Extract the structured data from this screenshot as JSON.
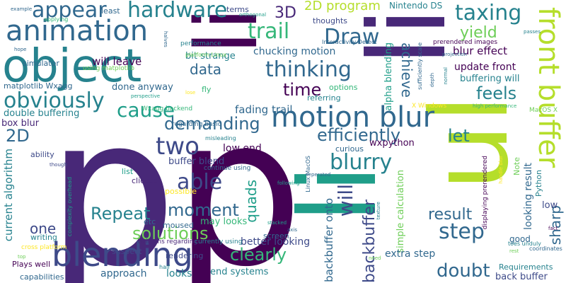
{
  "palette": {
    "background": "#ffffff",
    "dark_purple": "#440154",
    "indigo": "#482878",
    "blue": "#3e4a89",
    "steel": "#31688e",
    "teal": "#26828e",
    "green_teal": "#1f9e89",
    "green": "#35b779",
    "light_green": "#6ece58",
    "lime": "#b5de2b",
    "yellow": "#fde725"
  },
  "words": [
    {
      "text": "p",
      "color": "#482878"
    },
    {
      "text": "p",
      "color": "#440154"
    },
    {
      "text": "li",
      "color": "#440154"
    },
    {
      "text": "li",
      "color": "#482878"
    },
    {
      "text": "li",
      "color": "#1f9e89"
    },
    {
      "text": "ul",
      "color": "#b5de2b"
    },
    {
      "text": "object",
      "color": "#26828e"
    },
    {
      "text": "blending",
      "color": "#3e4a89"
    },
    {
      "text": "motion blur",
      "color": "#31688e"
    },
    {
      "text": "front buffer",
      "color": "#b5de2b"
    },
    {
      "text": "animation",
      "color": "#31688e"
    },
    {
      "text": "hardware",
      "color": "#26828e"
    },
    {
      "text": "appear",
      "color": "#31688e"
    },
    {
      "text": "taxing",
      "color": "#26828e"
    },
    {
      "text": "Draw",
      "color": "#31688e"
    },
    {
      "text": "trail",
      "color": "#35b779"
    },
    {
      "text": "thinking",
      "color": "#31688e"
    },
    {
      "text": "obviously",
      "color": "#26828e"
    },
    {
      "text": "cause",
      "color": "#1f9e89"
    },
    {
      "text": "able",
      "color": "#3e4a89"
    },
    {
      "text": "two",
      "color": "#3e4a89"
    },
    {
      "text": "demanding",
      "color": "#31688e"
    },
    {
      "text": "efficiently",
      "color": "#31688e"
    },
    {
      "text": "blurry",
      "color": "#26828e"
    },
    {
      "text": "Repeat",
      "color": "#26828e"
    },
    {
      "text": "moment",
      "color": "#31688e"
    },
    {
      "text": "solutions",
      "color": "#6ece58"
    },
    {
      "text": "clearly",
      "color": "#35b779"
    },
    {
      "text": "step",
      "color": "#31688e"
    },
    {
      "text": "result",
      "color": "#31688e"
    },
    {
      "text": "doubt",
      "color": "#31688e"
    },
    {
      "text": "feels",
      "color": "#26828e"
    },
    {
      "text": "time",
      "color": "#440154"
    },
    {
      "text": "data",
      "color": "#31688e"
    },
    {
      "text": "yield",
      "color": "#6ece58"
    },
    {
      "text": "achieve",
      "color": "#31688e"
    },
    {
      "text": "let",
      "color": "#26828e"
    },
    {
      "text": "will",
      "color": "#3e4a89"
    },
    {
      "text": "quads",
      "color": "#1f9e89"
    },
    {
      "text": "sharp",
      "color": "#31688e"
    },
    {
      "text": "backbuffer",
      "color": "#3e4a89"
    },
    {
      "text": "one",
      "color": "#3e4a89"
    },
    {
      "text": "2D",
      "color": "#31688e"
    },
    {
      "text": "3D",
      "color": "#482878"
    },
    {
      "text": "2D program",
      "color": "#b5de2b"
    },
    {
      "text": "Nintendo DS",
      "color": "#26828e"
    },
    {
      "text": "will leave",
      "color": "#440154"
    },
    {
      "text": "bit strange",
      "color": "#26828e"
    },
    {
      "text": "chucking motion",
      "color": "#31688e"
    },
    {
      "text": "update front",
      "color": "#440154"
    },
    {
      "text": "buffering will",
      "color": "#26828e"
    },
    {
      "text": "blur effect",
      "color": "#440154"
    },
    {
      "text": "done anyway",
      "color": "#31688e"
    },
    {
      "text": "double buffering",
      "color": "#26828e"
    },
    {
      "text": "box blur",
      "color": "#482878"
    },
    {
      "text": "fading trail",
      "color": "#31688e"
    },
    {
      "text": "low end",
      "color": "#440154"
    },
    {
      "text": "buffer blend",
      "color": "#3e4a89"
    },
    {
      "text": "current algorithm",
      "color": "#26828e"
    },
    {
      "text": "wxpython",
      "color": "#440154"
    },
    {
      "text": "looking result",
      "color": "#31688e"
    },
    {
      "text": "backbuffer onto",
      "color": "#31688e"
    },
    {
      "text": "simple calculation",
      "color": "#6ece58"
    },
    {
      "text": "alpha blending",
      "color": "#1f9e89"
    },
    {
      "text": "may looks",
      "color": "#35b779"
    },
    {
      "text": "better looking",
      "color": "#3e4a89"
    },
    {
      "text": "extra step",
      "color": "#31688e"
    },
    {
      "text": "approach",
      "color": "#31688e"
    },
    {
      "text": "looks",
      "color": "#26828e"
    },
    {
      "text": "end systems",
      "color": "#26828e"
    },
    {
      "text": "back buffer",
      "color": "#3e4a89"
    },
    {
      "text": "Requirements",
      "color": "#26828e"
    },
    {
      "text": "capabilities",
      "color": "#31688e"
    },
    {
      "text": "low",
      "color": "#3e4a89"
    },
    {
      "text": "good",
      "color": "#31688e"
    },
    {
      "text": "rendering",
      "color": "#3e4a89"
    },
    {
      "text": "screen",
      "color": "#31688e"
    },
    {
      "text": "suspect",
      "color": "#3e4a89"
    },
    {
      "text": "writing",
      "color": "#26828e"
    },
    {
      "text": "Plays well",
      "color": "#440154"
    },
    {
      "text": "cross platform",
      "color": "#fde725"
    },
    {
      "text": "opinions regarding",
      "color": "#482878"
    },
    {
      "text": "currently using",
      "color": "#26828e"
    },
    {
      "text": "least",
      "color": "#31688e"
    },
    {
      "text": "terms",
      "color": "#3e4a89"
    },
    {
      "text": "thoughts",
      "color": "#3e4a89"
    },
    {
      "text": "options",
      "color": "#35b779"
    },
    {
      "text": "referring",
      "color": "#26828e"
    },
    {
      "text": "curious",
      "color": "#31688e"
    },
    {
      "text": "list",
      "color": "#1f9e89"
    },
    {
      "text": "clicked",
      "color": "#482878"
    },
    {
      "text": "possible",
      "color": "#fde725"
    },
    {
      "text": "moused",
      "color": "#31688e"
    },
    {
      "text": "etc",
      "color": "#31688e"
    },
    {
      "text": "half",
      "color": "#26828e"
    },
    {
      "text": "fly",
      "color": "#35b779"
    },
    {
      "text": "ability",
      "color": "#3e4a89"
    },
    {
      "text": "Wxagg backend",
      "color": "#35b779"
    },
    {
      "text": "regarding basic",
      "color": "#31688e"
    },
    {
      "text": "misleading",
      "color": "#26828e"
    },
    {
      "text": "continue using",
      "color": "#31688e"
    },
    {
      "text": "simulator",
      "color": "#31688e"
    },
    {
      "text": "using matplotlib",
      "color": "#6ece58"
    },
    {
      "text": "matplotlib Wxagg",
      "color": "#31688e"
    },
    {
      "text": "performance",
      "color": "#26828e"
    },
    {
      "text": "platform Linux",
      "color": "#6ece58"
    },
    {
      "text": "Interactivity Detect",
      "color": "#31688e"
    },
    {
      "text": "prerendered images",
      "color": "#440154"
    },
    {
      "text": "projection",
      "color": "#31688e"
    },
    {
      "text": "passes",
      "color": "#26828e"
    },
    {
      "text": "applying",
      "color": "#35b779"
    },
    {
      "text": "example",
      "color": "#31688e"
    },
    {
      "text": "hope",
      "color": "#31688e"
    },
    {
      "text": "orthogonal",
      "color": "#1f9e89"
    },
    {
      "text": "perspective",
      "color": "#1f9e89"
    },
    {
      "text": "high performance",
      "color": "#35b779"
    },
    {
      "text": "MacOS X",
      "color": "#6ece58"
    },
    {
      "text": "X Windows",
      "color": "#fde725"
    },
    {
      "text": "Linux MacOS",
      "color": "#31688e"
    },
    {
      "text": "displaying prerendered",
      "color": "#440154"
    },
    {
      "text": "Note",
      "color": "#6ece58"
    },
    {
      "text": "Python",
      "color": "#26828e"
    },
    {
      "text": "toes unduly",
      "color": "#26828e"
    },
    {
      "text": "rest",
      "color": "#6ece58"
    },
    {
      "text": "need",
      "color": "#6ece58"
    },
    {
      "text": "coordinates",
      "color": "#31688e"
    },
    {
      "text": "fact",
      "color": "#440154"
    },
    {
      "text": "complexity overhead",
      "color": "#1f9e89"
    },
    {
      "text": "top",
      "color": "#6ece58"
    },
    {
      "text": "though",
      "color": "#3e4a89"
    },
    {
      "text": "axis",
      "color": "#31688e"
    },
    {
      "text": "stacked",
      "color": "#1f9e89"
    },
    {
      "text": "texture",
      "color": "#26828e"
    },
    {
      "text": "following",
      "color": "#1f9e89"
    },
    {
      "text": "seperated",
      "color": "#31688e"
    },
    {
      "text": "sufficiently scale",
      "color": "#31688e"
    },
    {
      "text": "normal",
      "color": "#26828e"
    },
    {
      "text": "depth",
      "color": "#31688e"
    },
    {
      "text": "halves",
      "color": "#31688e"
    },
    {
      "text": "handle blur",
      "color": "#fde725"
    },
    {
      "text": "lose",
      "color": "#fde725"
    }
  ]
}
